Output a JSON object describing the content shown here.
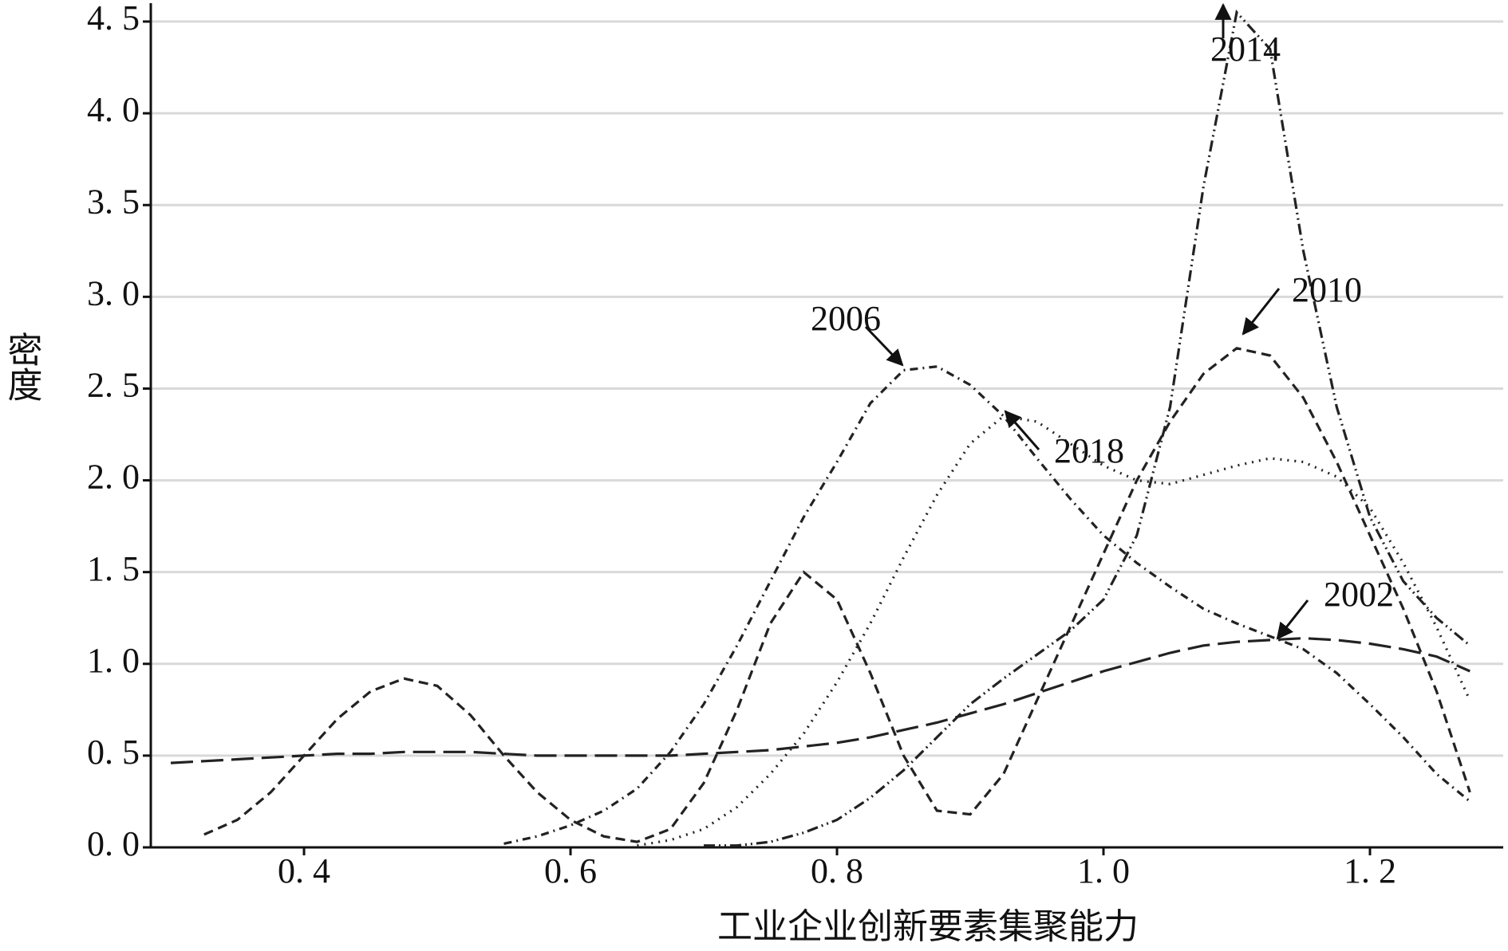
{
  "chart_data": {
    "type": "line",
    "x_label": "工业企业创新要素集聚能力",
    "y_label": "密度",
    "x": [
      0.3,
      0.325,
      0.35,
      0.375,
      0.4,
      0.425,
      0.45,
      0.475,
      0.5,
      0.525,
      0.55,
      0.575,
      0.6,
      0.625,
      0.65,
      0.675,
      0.7,
      0.725,
      0.75,
      0.775,
      0.8,
      0.825,
      0.85,
      0.875,
      0.9,
      0.925,
      0.95,
      0.975,
      1.0,
      1.025,
      1.05,
      1.075,
      1.1,
      1.125,
      1.15,
      1.175,
      1.2,
      1.225,
      1.25,
      1.275
    ],
    "series": [
      {
        "name": "2002",
        "color": "#222222",
        "dash": "28,10",
        "values": [
          0.46,
          0.47,
          0.48,
          0.49,
          0.5,
          0.51,
          0.51,
          0.52,
          0.52,
          0.52,
          0.51,
          0.5,
          0.5,
          0.5,
          0.5,
          0.5,
          0.51,
          0.52,
          0.53,
          0.55,
          0.57,
          0.6,
          0.64,
          0.68,
          0.73,
          0.78,
          0.84,
          0.9,
          0.96,
          1.01,
          1.06,
          1.1,
          1.12,
          1.13,
          1.14,
          1.13,
          1.11,
          1.08,
          1.04,
          0.96
        ]
      },
      {
        "name": "2006",
        "color": "#222222",
        "dash": "10,6,2,6",
        "values": [
          null,
          null,
          null,
          null,
          null,
          null,
          null,
          null,
          null,
          null,
          0.02,
          0.06,
          0.12,
          0.2,
          0.32,
          0.52,
          0.78,
          1.1,
          1.45,
          1.8,
          2.1,
          2.42,
          2.6,
          2.62,
          2.52,
          2.35,
          2.12,
          1.9,
          1.7,
          1.55,
          1.42,
          1.3,
          1.22,
          1.15,
          1.08,
          0.95,
          0.78,
          0.6,
          0.4,
          0.25
        ]
      },
      {
        "name": "2010",
        "color": "#222222",
        "dash": "12,7",
        "values": [
          null,
          0.07,
          0.15,
          0.3,
          0.5,
          0.7,
          0.85,
          0.92,
          0.88,
          0.72,
          0.5,
          0.3,
          0.15,
          0.06,
          0.03,
          0.1,
          0.35,
          0.75,
          1.22,
          1.5,
          1.35,
          0.95,
          0.5,
          0.2,
          0.18,
          0.4,
          0.8,
          1.2,
          1.6,
          2.0,
          2.32,
          2.58,
          2.72,
          2.68,
          2.45,
          2.1,
          1.7,
          1.3,
          0.85,
          0.3
        ]
      },
      {
        "name": "2014",
        "color": "#222222",
        "dash": "14,5,2,5,2,5",
        "values": [
          null,
          null,
          null,
          null,
          null,
          null,
          null,
          null,
          null,
          null,
          null,
          null,
          null,
          null,
          null,
          null,
          0.01,
          0.01,
          0.03,
          0.08,
          0.15,
          0.27,
          0.42,
          0.6,
          0.78,
          0.92,
          1.05,
          1.18,
          1.35,
          1.7,
          2.4,
          3.6,
          4.55,
          4.35,
          3.25,
          2.4,
          1.8,
          1.45,
          1.25,
          1.1
        ]
      },
      {
        "name": "2018",
        "color": "#222222",
        "dash": "2,7",
        "values": [
          null,
          null,
          null,
          null,
          null,
          null,
          null,
          null,
          null,
          null,
          null,
          null,
          null,
          null,
          0.01,
          0.04,
          0.1,
          0.22,
          0.4,
          0.62,
          0.9,
          1.22,
          1.58,
          1.92,
          2.2,
          2.35,
          2.32,
          2.2,
          2.08,
          2.0,
          1.98,
          2.03,
          2.08,
          2.12,
          2.1,
          2.02,
          1.85,
          1.55,
          1.2,
          0.8
        ]
      }
    ],
    "xlim": [
      0.285,
      1.3
    ],
    "ylim": [
      0,
      4.6
    ],
    "xticks": [
      {
        "value": 0.4,
        "label": "0. 4"
      },
      {
        "value": 0.6,
        "label": "0. 6"
      },
      {
        "value": 0.8,
        "label": "0. 8"
      },
      {
        "value": 1.0,
        "label": "1. 0"
      },
      {
        "value": 1.2,
        "label": "1. 2"
      }
    ],
    "yticks": [
      {
        "value": 0,
        "label": "0. 0"
      },
      {
        "value": 0.5,
        "label": "0. 5"
      },
      {
        "value": 1.0,
        "label": "1. 0"
      },
      {
        "value": 1.5,
        "label": "1. 5"
      },
      {
        "value": 2.0,
        "label": "2. 0"
      },
      {
        "value": 2.5,
        "label": "2. 5"
      },
      {
        "value": 3.0,
        "label": "3. 0"
      },
      {
        "value": 3.5,
        "label": "3. 5"
      },
      {
        "value": 4.0,
        "label": "4. 0"
      },
      {
        "value": 4.5,
        "label": "4. 5"
      }
    ],
    "grid": true
  }
}
